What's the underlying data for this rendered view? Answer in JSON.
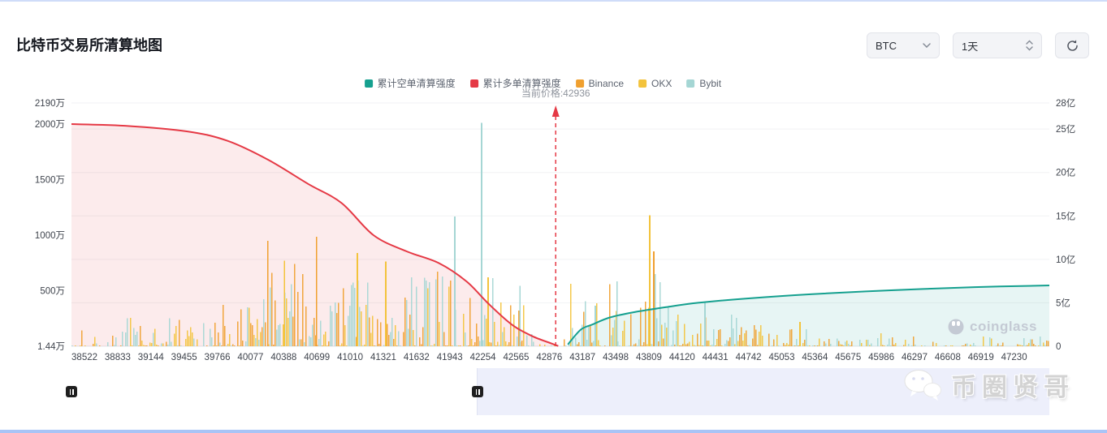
{
  "header": {
    "title": "比特币交易所清算地图"
  },
  "controls": {
    "symbol_select": {
      "value": "BTC"
    },
    "interval_select": {
      "value": "1天"
    },
    "refresh_button": "refresh"
  },
  "legend": {
    "items": [
      {
        "label": "累计空单清算强度",
        "color": "#15a08f"
      },
      {
        "label": "累计多单清算强度",
        "color": "#e53945"
      },
      {
        "label": "Binance",
        "color": "#f0a02f"
      },
      {
        "label": "OKX",
        "color": "#f3c33c"
      },
      {
        "label": "Bybit",
        "color": "#a5d6d4"
      }
    ]
  },
  "annotation": {
    "current_price_label": "当前价格:42936",
    "current_price": 42936,
    "color": "#e53945"
  },
  "watermark": {
    "brand": "coinglass",
    "overlay": "币圈贤哥"
  },
  "chart_data": {
    "type": "combo",
    "x_axis": {
      "min": 38400,
      "max": 47560,
      "ticks": [
        38522,
        38833,
        39144,
        39455,
        39766,
        40077,
        40388,
        40699,
        41010,
        41321,
        41632,
        41943,
        42254,
        42565,
        42876,
        43187,
        43498,
        43809,
        44120,
        44431,
        44742,
        45053,
        45364,
        45675,
        45986,
        46297,
        46608,
        46919,
        47230
      ]
    },
    "left_axis": {
      "unit": "万",
      "ticks": [
        {
          "label": "1.44万",
          "value": 1.44
        },
        {
          "label": "500万",
          "value": 500
        },
        {
          "label": "1000万",
          "value": 1000
        },
        {
          "label": "1500万",
          "value": 1500
        },
        {
          "label": "2000万",
          "value": 2000
        },
        {
          "label": "2190万",
          "value": 2190
        }
      ]
    },
    "right_axis": {
      "unit": "亿",
      "ticks": [
        {
          "label": "0",
          "value": 0
        },
        {
          "label": "5亿",
          "value": 5
        },
        {
          "label": "10亿",
          "value": 10
        },
        {
          "label": "15亿",
          "value": 15
        },
        {
          "label": "20亿",
          "value": 20
        },
        {
          "label": "25亿",
          "value": 25
        },
        {
          "label": "28亿",
          "value": 28
        }
      ]
    },
    "series": [
      {
        "name": "累计多单清算强度",
        "type": "line",
        "axis": "left",
        "color": "#e53945",
        "fill": "rgba(229,57,69,0.10)",
        "points": [
          [
            38400,
            2000
          ],
          [
            38900,
            1985
          ],
          [
            39480,
            1935
          ],
          [
            39860,
            1850
          ],
          [
            40240,
            1680
          ],
          [
            40620,
            1460
          ],
          [
            40930,
            1290
          ],
          [
            41230,
            1000
          ],
          [
            41540,
            855
          ],
          [
            41840,
            750
          ],
          [
            42100,
            585
          ],
          [
            42300,
            390
          ],
          [
            42520,
            200
          ],
          [
            42710,
            95
          ],
          [
            42900,
            25
          ],
          [
            42960,
            4
          ]
        ]
      },
      {
        "name": "累计空单清算强度",
        "type": "line",
        "axis": "right",
        "color": "#15a08f",
        "fill": "rgba(21,160,143,0.10)",
        "points": [
          [
            43050,
            0.2
          ],
          [
            43170,
            1.9
          ],
          [
            43280,
            2.5
          ],
          [
            43440,
            3.3
          ],
          [
            43660,
            3.9
          ],
          [
            43970,
            4.5
          ],
          [
            44270,
            5.0
          ],
          [
            44730,
            5.5
          ],
          [
            45340,
            6.0
          ],
          [
            46100,
            6.45
          ],
          [
            46860,
            6.8
          ],
          [
            47560,
            7.0
          ]
        ]
      }
    ],
    "bars": {
      "axis": "left",
      "seed": 7,
      "exchanges": [
        {
          "name": "Binance",
          "color": "#f0a02f",
          "weight": 0.36
        },
        {
          "name": "OKX",
          "color": "#f3c33c",
          "weight": 0.28
        },
        {
          "name": "Bybit",
          "color": "#a5d6d4",
          "weight": 0.36
        }
      ],
      "segments": [
        {
          "from": 38400,
          "to": 38900,
          "density": 0.55,
          "max": 150
        },
        {
          "from": 38900,
          "to": 39700,
          "density": 0.8,
          "max": 260
        },
        {
          "from": 39700,
          "to": 40250,
          "density": 0.9,
          "max": 480
        },
        {
          "from": 40250,
          "to": 40800,
          "density": 0.95,
          "max": 750
        },
        {
          "from": 40800,
          "to": 41500,
          "density": 0.95,
          "max": 650
        },
        {
          "from": 41500,
          "to": 42350,
          "density": 0.95,
          "max": 700
        },
        {
          "from": 42350,
          "to": 42650,
          "density": 0.9,
          "max": 420
        },
        {
          "from": 42650,
          "to": 43060,
          "density": 0.5,
          "max": 130
        },
        {
          "from": 43060,
          "to": 43700,
          "density": 0.92,
          "max": 620
        },
        {
          "from": 43700,
          "to": 44150,
          "density": 0.92,
          "max": 700
        },
        {
          "from": 44150,
          "to": 44650,
          "density": 0.85,
          "max": 320
        },
        {
          "from": 44650,
          "to": 45450,
          "density": 0.75,
          "max": 200
        },
        {
          "from": 45450,
          "to": 46300,
          "density": 0.6,
          "max": 120
        },
        {
          "from": 46300,
          "to": 47560,
          "density": 0.5,
          "max": 90
        }
      ],
      "spikes": [
        {
          "price": 40240,
          "value": 950,
          "exchange": "Binance"
        },
        {
          "price": 40395,
          "value": 770,
          "exchange": "OKX"
        },
        {
          "price": 40697,
          "value": 985,
          "exchange": "Binance"
        },
        {
          "price": 41078,
          "value": 840,
          "exchange": "OKX"
        },
        {
          "price": 41344,
          "value": 765,
          "exchange": "OKX"
        },
        {
          "price": 41991,
          "value": 1170,
          "exchange": "Bybit"
        },
        {
          "price": 42242,
          "value": 2010,
          "exchange": "Bybit"
        },
        {
          "price": 42303,
          "value": 620,
          "exchange": "OKX"
        },
        {
          "price": 42600,
          "value": 545,
          "exchange": "Bybit"
        },
        {
          "price": 43307,
          "value": 365,
          "exchange": "Bybit"
        },
        {
          "price": 43512,
          "value": 585,
          "exchange": "Bybit"
        },
        {
          "price": 43817,
          "value": 1180,
          "exchange": "OKX"
        },
        {
          "price": 43855,
          "value": 855,
          "exchange": "Binance"
        },
        {
          "price": 44334,
          "value": 400,
          "exchange": "Bybit"
        },
        {
          "price": 45224,
          "value": 220,
          "exchange": "OKX"
        }
      ]
    },
    "current_price_line": {
      "price": 42936,
      "style": "dashed",
      "color": "#e53945"
    }
  }
}
